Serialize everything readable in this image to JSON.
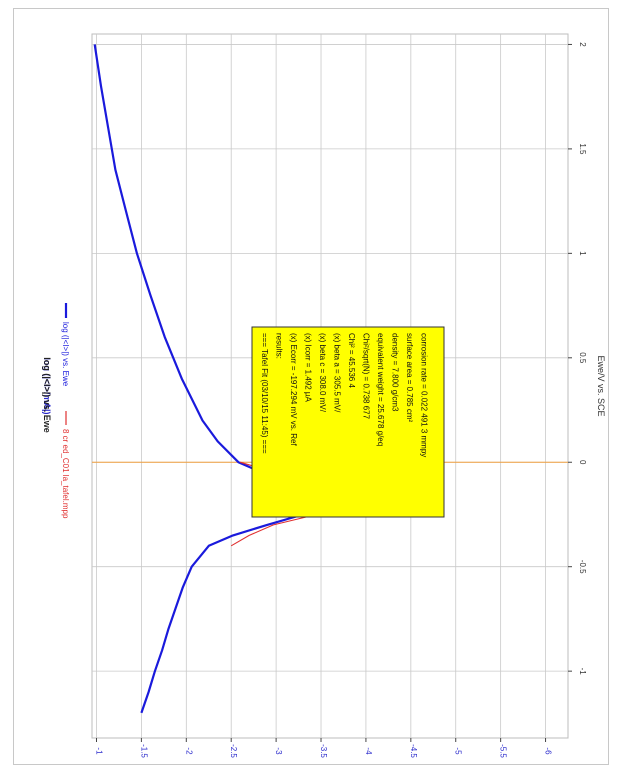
{
  "chart_data": {
    "type": "line",
    "title": "log (|<I>|) vs. Ewe",
    "xlabel": "Ewe/V vs. SCE",
    "ylabel": "log (|<I>/mA|)",
    "x_ticks": [
      "-1",
      "-0.5",
      "0",
      "0.5",
      "1",
      "1.5",
      "2"
    ],
    "y_ticks": [
      "-1",
      "-1.5",
      "-2",
      "-2.5",
      "-3",
      "-3.5",
      "-4",
      "-4.5",
      "-5",
      "-5.5",
      "-6"
    ],
    "xlim": [
      -1.32,
      2.05
    ],
    "ylim": [
      -6.25,
      -0.95
    ],
    "grid": true,
    "legend": [
      {
        "label": "log (|<I>|) vs. Ewe",
        "color": "#1a1adc"
      },
      {
        "label": "8 cr ed_C01 la_tafel.mpp",
        "color": "#e03030"
      }
    ],
    "vertical_marker_x": 0.0,
    "series": [
      {
        "name": "log (|<I>|) vs. Ewe",
        "color": "#1a1adc",
        "x": [
          -1.2,
          -1.1,
          -1.0,
          -0.9,
          -0.8,
          -0.7,
          -0.6,
          -0.5,
          -0.4,
          -0.35,
          -0.3,
          -0.25,
          -0.2,
          -0.19,
          -0.15,
          -0.1,
          -0.05,
          0.0,
          0.1,
          0.2,
          0.4,
          0.6,
          0.8,
          1.0,
          1.2,
          1.4,
          1.6,
          1.8,
          2.0
        ],
        "y": [
          -1.5,
          -1.58,
          -1.65,
          -1.73,
          -1.8,
          -1.88,
          -1.96,
          -2.06,
          -2.25,
          -2.52,
          -2.9,
          -3.3,
          -3.9,
          -4.5,
          -3.65,
          -3.15,
          -2.85,
          -2.58,
          -2.35,
          -2.18,
          -1.95,
          -1.76,
          -1.6,
          -1.45,
          -1.33,
          -1.21,
          -1.13,
          -1.05,
          -0.98
        ]
      },
      {
        "name": "8 cr ed_C01 la_tafel.mpp",
        "color": "#e03030",
        "x": [
          -0.4,
          -0.35,
          -0.3,
          -0.25,
          -0.2,
          -0.19,
          -0.15,
          -0.1,
          -0.05,
          0.0
        ],
        "y": [
          -2.5,
          -2.7,
          -2.97,
          -3.45,
          -4.1,
          -4.8,
          -4.05,
          -3.35,
          -3.0,
          -2.6
        ]
      }
    ],
    "fit_box": {
      "lines": [
        "=== Tafel Fit (03/10/15 11:45) ===",
        "results:",
        "(x) Ecorr = -197.294 mV vs. Ref",
        "(x) Icorr = 1.492 µA",
        "(x) beta c = 308.0 mV/",
        "(x) beta a = 305.5 mV/",
        "Chi² = 45.536 4",
        "Chi²/sqrt(N) = 0.738 677",
        "equivalent weight = 25.678 g/eq",
        "density = 7.800 g/cm3",
        "surface area = 0.785 cm²",
        "corrosion rate = 0.022 491 3 mmpy"
      ],
      "x_data": 0.175,
      "y_data": -2.0
    }
  }
}
